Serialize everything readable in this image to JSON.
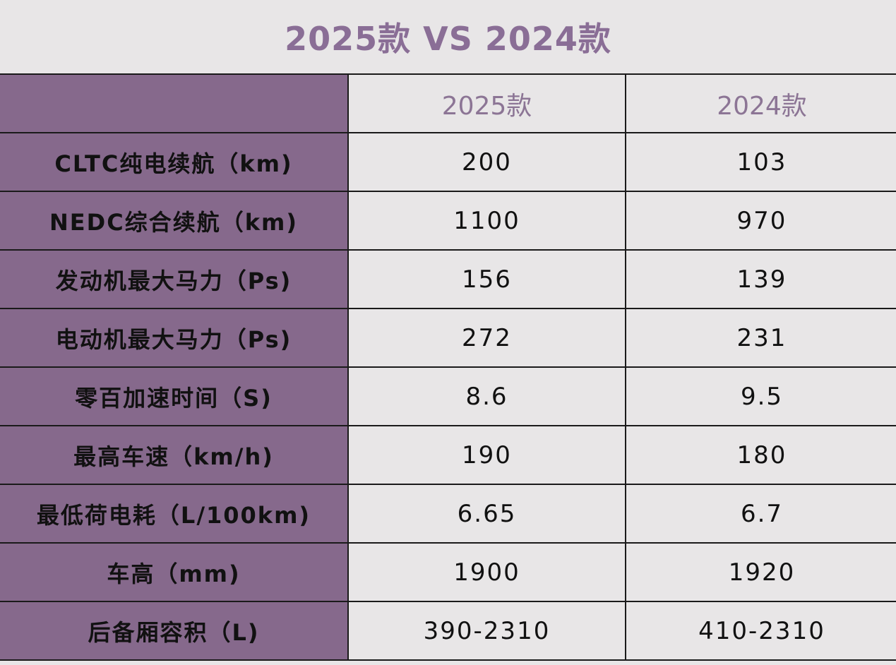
{
  "title": "2025款 VS 2024款",
  "header": {
    "corner": "",
    "col_2025": "2025款",
    "col_2024": "2024款"
  },
  "rows": [
    {
      "label": "CLTC纯电续航（km)",
      "v2025": "200",
      "v2024": "103"
    },
    {
      "label": "NEDC综合续航（km)",
      "v2025": "1100",
      "v2024": "970"
    },
    {
      "label": "发动机最大马力（Ps)",
      "v2025": "156",
      "v2024": "139"
    },
    {
      "label": "电动机最大马力（Ps)",
      "v2025": "272",
      "v2024": "231"
    },
    {
      "label": "零百加速时间（S)",
      "v2025": "8.6",
      "v2024": "9.5"
    },
    {
      "label": "最高车速（km/h)",
      "v2025": "190",
      "v2024": "180"
    },
    {
      "label": "最低荷电耗（L/100km)",
      "v2025": "6.65",
      "v2024": "6.7"
    },
    {
      "label": "车高（mm)",
      "v2025": "1900",
      "v2024": "1920"
    },
    {
      "label": "后备厢容积（L)",
      "v2025": "390-2310",
      "v2024": "410-2310"
    }
  ],
  "colors": {
    "background": "#e8e6e7",
    "label_column": "#86698c",
    "title_text": "#8a6e96",
    "header_text": "#8c7595",
    "grid": "#1a1a1a"
  }
}
